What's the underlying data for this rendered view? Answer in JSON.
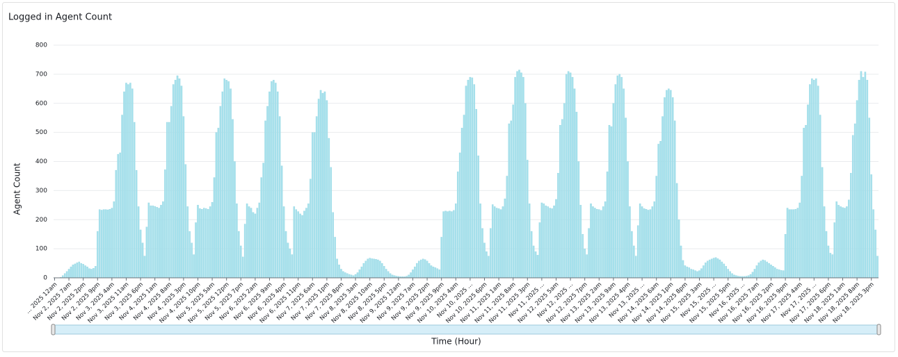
{
  "chart_data": {
    "type": "bar",
    "title": "Logged in Agent Count",
    "x_label": "Time (Hour)",
    "y_label": "Agent Count",
    "color": "#a6e1ec",
    "grid": true,
    "ylim": [
      0,
      800
    ],
    "yticks": [
      0,
      100,
      200,
      300,
      400,
      500,
      600,
      700,
      800
    ],
    "categories": [
      "... 2025 12am",
      null,
      null,
      null,
      null,
      null,
      null,
      "Nov 2, 2025 7am",
      null,
      null,
      null,
      null,
      null,
      null,
      "Nov 2, 2025 2pm",
      null,
      null,
      null,
      null,
      null,
      null,
      "Nov 2, 2025 9pm",
      null,
      null,
      null,
      null,
      null,
      null,
      "Nov 3, 2025 4am",
      null,
      null,
      null,
      null,
      null,
      null,
      "Nov 3, 2025 11am",
      null,
      null,
      null,
      null,
      null,
      null,
      "Nov 3, 2025 6pm",
      null,
      null,
      null,
      null,
      null,
      null,
      "Nov 4, 2025 1am",
      null,
      null,
      null,
      null,
      null,
      null,
      "Nov 4, 2025 8am",
      null,
      null,
      null,
      null,
      null,
      null,
      "Nov 4, 2025 3pm",
      null,
      null,
      null,
      null,
      null,
      null,
      "Nov 4, 2025 10pm",
      null,
      null,
      null,
      null,
      null,
      null,
      "Nov 5, 2025 5am",
      null,
      null,
      null,
      null,
      null,
      null,
      "Nov 5, 2025 12pm",
      null,
      null,
      null,
      null,
      null,
      null,
      "Nov 5, 2025 7pm",
      null,
      null,
      null,
      null,
      null,
      null,
      "Nov 6, 2025 2am",
      null,
      null,
      null,
      null,
      null,
      null,
      "Nov 6, 2025 9am",
      null,
      null,
      null,
      null,
      null,
      null,
      "Nov 6, 2025 4pm",
      null,
      null,
      null,
      null,
      null,
      null,
      "Nov 6, 2025 11pm",
      null,
      null,
      null,
      null,
      null,
      null,
      "Nov 7, 2025 6am",
      null,
      null,
      null,
      null,
      null,
      null,
      "Nov 7, 2025 1pm",
      null,
      null,
      null,
      null,
      null,
      null,
      "Nov 7, 2025 8pm",
      null,
      null,
      null,
      null,
      null,
      null,
      "Nov 8, 2025 3am",
      null,
      null,
      null,
      null,
      null,
      null,
      "Nov 8, 2025 10am",
      null,
      null,
      null,
      null,
      null,
      null,
      "Nov 8, 2025 5pm",
      null,
      null,
      null,
      null,
      null,
      null,
      "Nov 9, 2025 12am",
      null,
      null,
      null,
      null,
      null,
      null,
      "Nov 9, 2025 7am",
      null,
      null,
      null,
      null,
      null,
      null,
      "Nov 9, 2025 2pm",
      null,
      null,
      null,
      null,
      null,
      null,
      "Nov 9, 2025 9pm",
      null,
      null,
      null,
      null,
      null,
      null,
      "Nov 10, 2025 4am",
      null,
      null,
      null,
      null,
      null,
      null,
      "Nov 10, 2025 ...",
      null,
      null,
      null,
      null,
      null,
      null,
      "Nov 10, 2025 6pm",
      null,
      null,
      null,
      null,
      null,
      null,
      "Nov 11, 2025 1am",
      null,
      null,
      null,
      null,
      null,
      null,
      "Nov 11, 2025 8am",
      null,
      null,
      null,
      null,
      null,
      null,
      "Nov 11, 2025 3pm",
      null,
      null,
      null,
      null,
      null,
      null,
      "Nov 11, 2025 ...",
      null,
      null,
      null,
      null,
      null,
      null,
      "Nov 12, 2025 5am",
      null,
      null,
      null,
      null,
      null,
      null,
      "Nov 12, 2025 ...",
      null,
      null,
      null,
      null,
      null,
      null,
      "Nov 12, 2025 7pm",
      null,
      null,
      null,
      null,
      null,
      null,
      "Nov 13, 2025 2am",
      null,
      null,
      null,
      null,
      null,
      null,
      "Nov 13, 2025 9am",
      null,
      null,
      null,
      null,
      null,
      null,
      "Nov 13, 2025 4pm",
      null,
      null,
      null,
      null,
      null,
      null,
      "Nov 13, 2025 ...",
      null,
      null,
      null,
      null,
      null,
      null,
      "Nov 14, 2025 6am",
      null,
      null,
      null,
      null,
      null,
      null,
      "Nov 14, 2025 1pm",
      null,
      null,
      null,
      null,
      null,
      null,
      "Nov 14, 2025 8pm",
      null,
      null,
      null,
      null,
      null,
      null,
      "Nov 15, 2025 3am",
      null,
      null,
      null,
      null,
      null,
      null,
      "Nov 15, 2025 ...",
      null,
      null,
      null,
      null,
      null,
      null,
      "Nov 15, 2025 5pm",
      null,
      null,
      null,
      null,
      null,
      null,
      "Nov 16, 2025 ...",
      null,
      null,
      null,
      null,
      null,
      null,
      "Nov 16, 2025 7am",
      null,
      null,
      null,
      null,
      null,
      null,
      "Nov 16, 2025 2pm",
      null,
      null,
      null,
      null,
      null,
      null,
      "Nov 16, 2025 9pm",
      null,
      null,
      null,
      null,
      null,
      null,
      "Nov 17, 2025 4am",
      null,
      null,
      null,
      null,
      null,
      null,
      "Nov 17, 2025 ...",
      null,
      null,
      null,
      null,
      null,
      null,
      "Nov 17, 2025 6pm",
      null,
      null,
      null,
      null,
      null,
      null,
      "Nov 18, 2025 1am",
      null,
      null,
      null,
      null,
      null,
      null,
      "Nov 18, 2025 8am",
      null,
      null,
      null,
      null,
      null,
      null,
      "Nov 18, 2025 3pm",
      null,
      null,
      null
    ],
    "values": [
      0,
      0,
      0,
      2,
      8,
      15,
      22,
      30,
      38,
      45,
      48,
      52,
      55,
      50,
      47,
      42,
      38,
      32,
      30,
      33,
      40,
      160,
      235,
      233,
      235,
      235,
      234,
      236,
      240,
      262,
      370,
      425,
      430,
      560,
      640,
      670,
      665,
      670,
      650,
      535,
      370,
      245,
      165,
      120,
      75,
      175,
      258,
      248,
      248,
      246,
      243,
      240,
      250,
      262,
      372,
      535,
      535,
      590,
      665,
      680,
      695,
      685,
      660,
      555,
      390,
      245,
      160,
      120,
      80,
      190,
      250,
      238,
      236,
      240,
      238,
      236,
      245,
      260,
      345,
      500,
      515,
      590,
      640,
      685,
      680,
      675,
      650,
      545,
      400,
      255,
      160,
      110,
      72,
      185,
      255,
      245,
      240,
      225,
      220,
      240,
      258,
      345,
      395,
      540,
      590,
      640,
      675,
      680,
      670,
      640,
      555,
      385,
      245,
      160,
      120,
      100,
      80,
      245,
      235,
      228,
      220,
      215,
      230,
      240,
      255,
      340,
      500,
      500,
      555,
      615,
      645,
      635,
      640,
      610,
      480,
      380,
      225,
      140,
      65,
      45,
      30,
      22,
      18,
      15,
      12,
      10,
      8,
      12,
      18,
      28,
      38,
      50,
      58,
      65,
      68,
      66,
      65,
      64,
      62,
      58,
      50,
      40,
      30,
      22,
      15,
      10,
      8,
      6,
      5,
      4,
      4,
      4,
      6,
      10,
      18,
      28,
      38,
      50,
      58,
      62,
      65,
      63,
      58,
      50,
      42,
      38,
      35,
      32,
      28,
      140,
      228,
      230,
      228,
      230,
      228,
      232,
      255,
      365,
      430,
      515,
      560,
      660,
      680,
      690,
      688,
      665,
      580,
      420,
      255,
      170,
      120,
      90,
      75,
      170,
      252,
      245,
      240,
      238,
      235,
      245,
      272,
      350,
      530,
      540,
      595,
      690,
      710,
      715,
      705,
      690,
      600,
      405,
      255,
      160,
      110,
      90,
      78,
      190,
      258,
      255,
      248,
      245,
      240,
      238,
      248,
      270,
      360,
      525,
      545,
      600,
      700,
      710,
      705,
      690,
      650,
      570,
      400,
      250,
      150,
      100,
      80,
      170,
      255,
      245,
      240,
      236,
      235,
      232,
      245,
      262,
      365,
      525,
      520,
      600,
      665,
      695,
      700,
      690,
      650,
      550,
      400,
      245,
      160,
      110,
      75,
      180,
      255,
      245,
      238,
      236,
      233,
      235,
      245,
      262,
      350,
      460,
      470,
      555,
      620,
      645,
      650,
      645,
      620,
      540,
      325,
      200,
      110,
      60,
      42,
      38,
      35,
      30,
      28,
      25,
      22,
      25,
      32,
      42,
      52,
      58,
      62,
      65,
      68,
      70,
      66,
      62,
      55,
      48,
      40,
      30,
      22,
      15,
      10,
      8,
      6,
      5,
      5,
      5,
      6,
      8,
      12,
      20,
      30,
      42,
      52,
      58,
      62,
      60,
      55,
      50,
      45,
      40,
      35,
      30,
      28,
      26,
      25,
      150,
      240,
      235,
      235,
      235,
      236,
      240,
      258,
      350,
      515,
      525,
      595,
      665,
      685,
      680,
      685,
      660,
      560,
      380,
      245,
      160,
      110,
      85,
      80,
      190,
      262,
      250,
      245,
      242,
      240,
      245,
      268,
      360,
      490,
      530,
      610,
      680,
      710,
      690,
      708,
      680,
      550,
      355,
      235,
      165,
      75
    ]
  }
}
